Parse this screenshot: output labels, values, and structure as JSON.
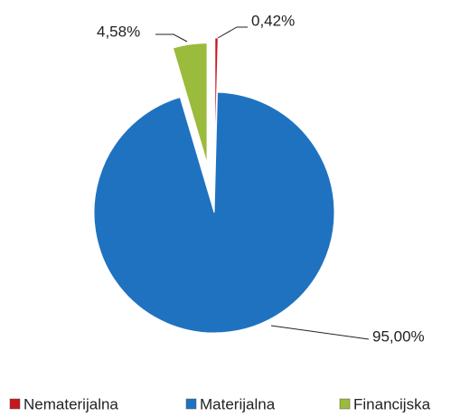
{
  "chart_data": {
    "type": "pie",
    "categories": [
      "Nematerijalna",
      "Materijalna",
      "Financijska"
    ],
    "values": [
      0.42,
      95.0,
      4.58
    ],
    "value_labels": [
      "0,42%",
      "95,00%",
      "4,58%"
    ],
    "colors": [
      "#c8161d",
      "#1f72c0",
      "#9bbb3c"
    ],
    "legend": "bottom"
  }
}
